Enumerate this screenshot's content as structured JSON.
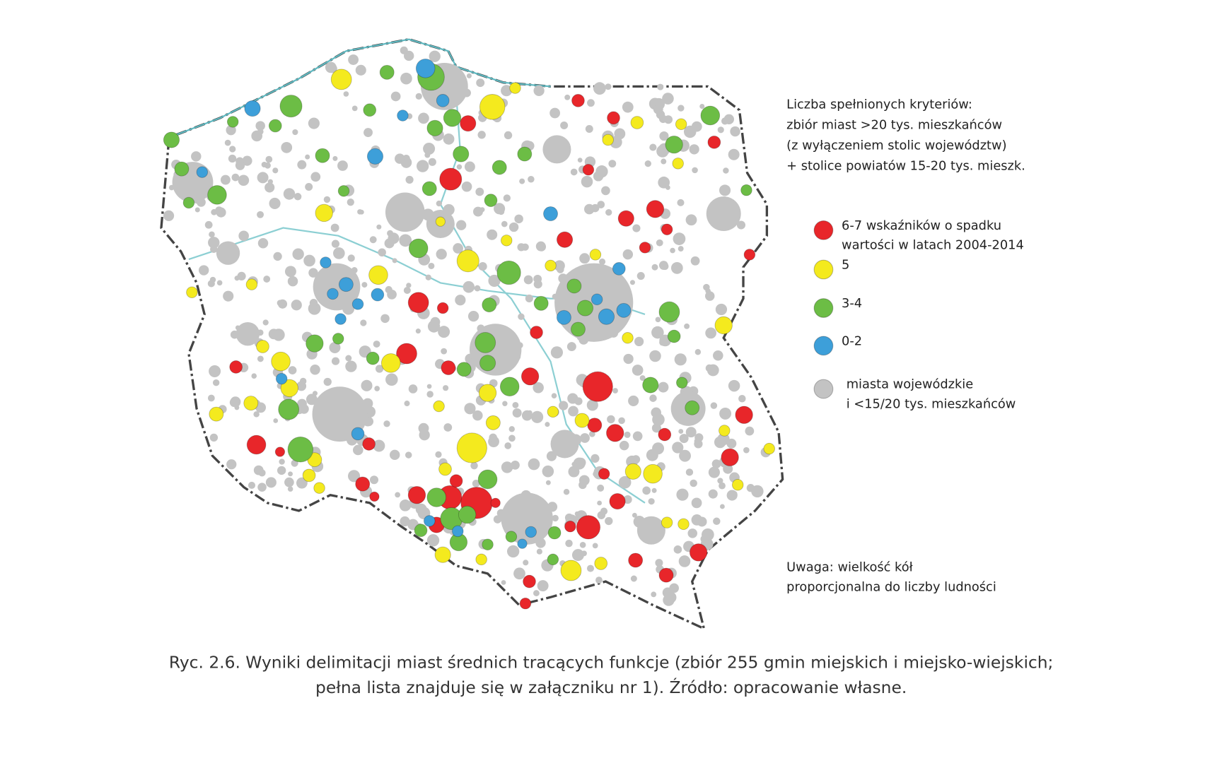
{
  "legend": {
    "title": [
      "Liczba spełnionych kryteriów:",
      "zbiór miast >20 tys. mieszkańców",
      "(z wyłączeniem stolic województw)",
      "+ stolice powiatów 15-20 tys. mieszk."
    ],
    "items": [
      {
        "label": [
          "6-7 wskaźników o spadku",
          "wartości w latach 2004-2014"
        ],
        "color": "#e8262a"
      },
      {
        "label": [
          "5"
        ],
        "color": "#f4ea1e"
      },
      {
        "label": [
          "3-4"
        ],
        "color": "#6cbd45"
      },
      {
        "label": [
          "0-2"
        ],
        "color": "#3d9fd9"
      },
      {
        "label": [
          "miasta wojewódzkie",
          "i <15/20 tys. mieszkańców"
        ],
        "color": "#c3c3c3"
      }
    ]
  },
  "note": [
    "Uwaga: wielkość kół",
    "proporcjonalna do liczby ludności"
  ],
  "caption": [
    "Ryc. 2.6. Wyniki delimitacji miast średnich tracących funkcje (zbiór 255 gmin miejskich i miejsko-wiejskich;",
    "pełna lista znajduje się w załączniku nr 1). Źródło: opracowanie własne."
  ]
}
